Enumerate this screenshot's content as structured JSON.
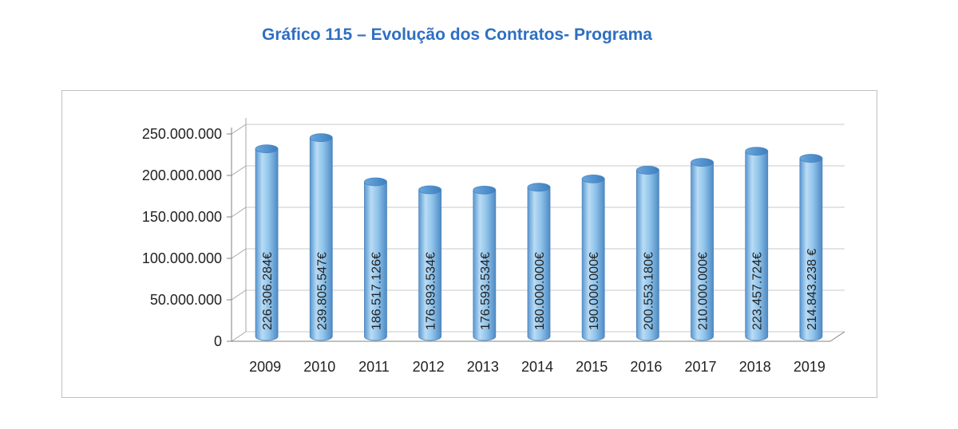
{
  "title": "Gráfico 115 – Evolução dos Contratos- Programa",
  "chart_data": {
    "type": "bar",
    "title": "Gráfico 115 – Evolução dos Contratos- Programa",
    "xlabel": "",
    "ylabel": "",
    "ylim": [
      0,
      250000000
    ],
    "grid": true,
    "yticks": [
      0,
      50000000,
      100000000,
      150000000,
      200000000,
      250000000
    ],
    "ytick_labels": [
      "0",
      "50.000.000",
      "100.000.000",
      "150.000.000",
      "200.000.000",
      "250.000.000"
    ],
    "categories": [
      "2009",
      "2010",
      "2011",
      "2012",
      "2013",
      "2014",
      "2015",
      "2016",
      "2017",
      "2018",
      "2019"
    ],
    "values": [
      226306284,
      239805547,
      186517126,
      176893534,
      176593534,
      180000000,
      190000000,
      200553180,
      210000000,
      223457724,
      214843238
    ],
    "data_labels": [
      "226.306.284€",
      "239.805.547€",
      "186.517.126€",
      "176.893.534€",
      "176.593.534€",
      "180.000.000€",
      "190.000.000€",
      "200.553.180€",
      "210.000.000€",
      "223.457.724€",
      "214.843.238 €"
    ],
    "bar_color": "#8fc3ea",
    "bar_edge_color": "#5b9bd5"
  }
}
